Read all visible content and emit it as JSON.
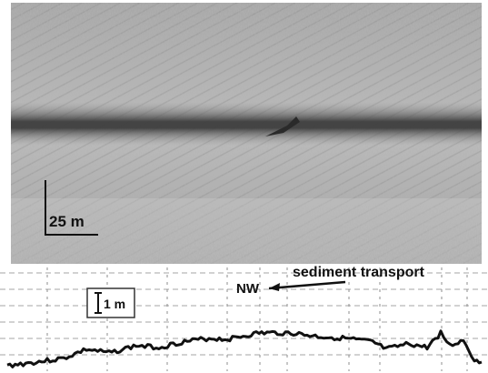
{
  "sonar_image": {
    "scale_label": "25 m"
  },
  "profile": {
    "direction_label": "NW",
    "transport_label": "sediment transport",
    "vertical_scale_label": "1 m"
  },
  "colors": {
    "sonar_background": "#b9b9b9",
    "dark_band": "#4a4a4a",
    "grid": "#9a9a9a",
    "profile_line": "#111111"
  }
}
